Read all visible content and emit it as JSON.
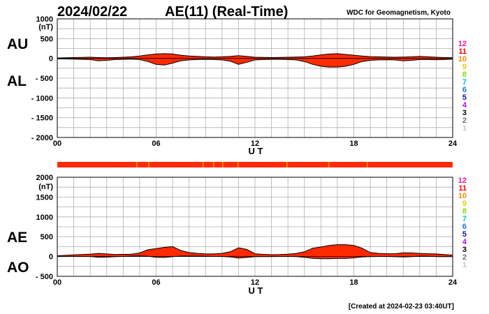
{
  "header": {
    "date": "2024/02/22",
    "title": "AE(11) (Real-Time)",
    "source": "WDC for Geomagnetism, Kyoto"
  },
  "footer": {
    "created": "[Created at 2024-02-23 03:40UT]"
  },
  "colors": {
    "fill": "#ff2a00",
    "line": "#000000",
    "grid": "#b0b0b0",
    "strip": "#ff2a00",
    "strip_alt": "#f0a000"
  },
  "station_scale": [
    {
      "label": "12",
      "color": "#ff1493"
    },
    {
      "label": "11",
      "color": "#ff0000"
    },
    {
      "label": "10",
      "color": "#ff8c00"
    },
    {
      "label": "9",
      "color": "#e6c800"
    },
    {
      "label": "8",
      "color": "#7fe000"
    },
    {
      "label": "7",
      "color": "#00c0c0"
    },
    {
      "label": "6",
      "color": "#1e6cff"
    },
    {
      "label": "5",
      "color": "#1010b0"
    },
    {
      "label": "4",
      "color": "#c000ff"
    },
    {
      "label": "3",
      "color": "#000000"
    },
    {
      "label": "2",
      "color": "#707070"
    },
    {
      "label": "1",
      "color": "#c8c8c8"
    }
  ],
  "chart_data": [
    {
      "type": "area",
      "unit_label": "(nT)",
      "series_labels": [
        "AU",
        "AL"
      ],
      "xlabel": "U T",
      "xlim": [
        0,
        24
      ],
      "xticks": [
        "00",
        "06",
        "12",
        "18",
        "24"
      ],
      "ylim": [
        -2000,
        1000
      ],
      "yticks": [
        "1000",
        "500",
        "0",
        "- 500",
        "- 1000",
        "- 1500",
        "- 2000"
      ],
      "grid": true,
      "x": [
        0,
        0.5,
        1,
        1.5,
        2,
        2.5,
        3,
        3.5,
        4,
        4.5,
        5,
        5.5,
        6,
        6.5,
        7,
        7.5,
        8,
        8.5,
        9,
        9.5,
        10,
        10.5,
        11,
        11.5,
        12,
        12.5,
        13,
        13.5,
        14,
        14.5,
        15,
        15.5,
        16,
        16.5,
        17,
        17.5,
        18,
        18.5,
        19,
        19.5,
        20,
        20.5,
        21,
        21.5,
        22,
        22.5,
        23,
        23.5,
        24
      ],
      "series": [
        {
          "name": "AU",
          "values": [
            10,
            15,
            20,
            25,
            30,
            20,
            15,
            20,
            30,
            40,
            60,
            90,
            110,
            120,
            110,
            80,
            60,
            50,
            40,
            35,
            40,
            50,
            70,
            50,
            30,
            25,
            20,
            25,
            30,
            35,
            40,
            60,
            90,
            110,
            120,
            100,
            80,
            60,
            45,
            40,
            35,
            30,
            35,
            40,
            50,
            40,
            30,
            20,
            15
          ]
        },
        {
          "name": "AL",
          "values": [
            -10,
            -15,
            -20,
            -25,
            -30,
            -60,
            -50,
            -30,
            -25,
            -20,
            -30,
            -80,
            -150,
            -170,
            -120,
            -60,
            -40,
            -30,
            -25,
            -30,
            -40,
            -70,
            -150,
            -100,
            -40,
            -30,
            -25,
            -25,
            -30,
            -40,
            -80,
            -150,
            -200,
            -220,
            -220,
            -200,
            -150,
            -80,
            -50,
            -40,
            -35,
            -40,
            -60,
            -50,
            -30,
            -30,
            -35,
            -30,
            -20
          ]
        }
      ]
    },
    {
      "type": "area",
      "unit_label": "(nT)",
      "series_labels": [
        "AE",
        "AO"
      ],
      "xlabel": "U T",
      "xlim": [
        0,
        24
      ],
      "xticks": [
        "00",
        "06",
        "12",
        "18",
        "24"
      ],
      "ylim": [
        -500,
        2000
      ],
      "yticks": [
        "2000",
        "1500",
        "1000",
        "500",
        "0",
        "- 500"
      ],
      "grid": true,
      "x": [
        0,
        0.5,
        1,
        1.5,
        2,
        2.5,
        3,
        3.5,
        4,
        4.5,
        5,
        5.5,
        6,
        6.5,
        7,
        7.5,
        8,
        8.5,
        9,
        9.5,
        10,
        10.5,
        11,
        11.5,
        12,
        12.5,
        13,
        13.5,
        14,
        14.5,
        15,
        15.5,
        16,
        16.5,
        17,
        17.5,
        18,
        18.5,
        19,
        19.5,
        20,
        20.5,
        21,
        21.5,
        22,
        22.5,
        23,
        23.5,
        24
      ],
      "series": [
        {
          "name": "AE",
          "values": [
            20,
            30,
            40,
            50,
            60,
            80,
            65,
            50,
            55,
            60,
            90,
            170,
            200,
            230,
            250,
            150,
            100,
            80,
            65,
            65,
            80,
            120,
            220,
            180,
            70,
            55,
            45,
            50,
            60,
            75,
            120,
            210,
            240,
            280,
            300,
            300,
            280,
            210,
            100,
            80,
            70,
            70,
            95,
            90,
            80,
            70,
            65,
            50,
            35
          ]
        },
        {
          "name": "AO",
          "values": [
            0,
            0,
            0,
            0,
            0,
            -20,
            -15,
            -5,
            2,
            10,
            15,
            5,
            -20,
            -25,
            -5,
            10,
            10,
            10,
            7,
            2,
            0,
            -10,
            -40,
            -25,
            -5,
            -2,
            -2,
            0,
            0,
            -2,
            -20,
            -45,
            -55,
            -55,
            -50,
            -50,
            -35,
            -10,
            -2,
            0,
            0,
            -5,
            -12,
            -5,
            10,
            5,
            -2,
            -5,
            -2
          ]
        }
      ]
    }
  ]
}
